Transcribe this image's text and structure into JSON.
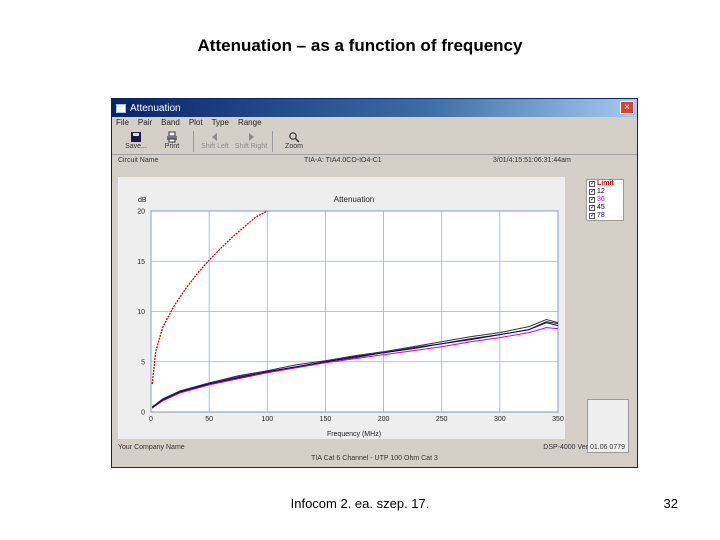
{
  "slide": {
    "title": "Attenuation – as a function of frequency",
    "footer": "Infocom 2. ea. szep. 17.",
    "page_number": "32"
  },
  "window": {
    "title": "Attenuation",
    "close_label": "×",
    "menu": [
      "File",
      "Pair",
      "Band",
      "Plot",
      "Type",
      "Range"
    ],
    "toolbar": [
      {
        "label": "Save...",
        "icon": "save-icon",
        "enabled": true
      },
      {
        "label": "Print",
        "icon": "printer-icon",
        "enabled": true
      },
      {
        "label": "Shift Left",
        "icon": "arrow-left-icon",
        "enabled": false
      },
      {
        "label": "Shift Right",
        "icon": "arrow-right-icon",
        "enabled": false
      },
      {
        "label": "Zoom",
        "icon": "magnifier-icon",
        "enabled": true
      }
    ],
    "info": {
      "left": "Circuit Name",
      "center": "TIA-A: TIA4.0CO-IO4-C1",
      "right": "3/01/4:15:51:06:31:44am"
    },
    "status": {
      "left": "Your Company Name",
      "right": "DSP-4000 Ver 01.06 0779"
    },
    "bottom_line": "TIA Cat 6 Channel - UTP 100 Ohm Cat 3",
    "legend": [
      {
        "label": "Limit",
        "color": "#cc0000",
        "checked": true
      },
      {
        "label": "12",
        "color": "#333333",
        "checked": true
      },
      {
        "label": "36",
        "color": "#cc00cc",
        "checked": true
      },
      {
        "label": "45",
        "color": "#333333",
        "checked": true
      },
      {
        "label": "78",
        "color": "#000080",
        "checked": true
      }
    ]
  },
  "chart_data": {
    "type": "line",
    "title": "Attenuation",
    "ylabel": "dB",
    "xlabel": "Frequency (MHz)",
    "xlim": [
      0,
      350
    ],
    "ylim": [
      0,
      20
    ],
    "xticks": [
      0,
      50,
      100,
      150,
      200,
      250,
      300,
      350
    ],
    "yticks": [
      0,
      5,
      10,
      15,
      20
    ],
    "grid": true,
    "legend_position": "top-right",
    "series": [
      {
        "name": "Limit",
        "color": "#e00000",
        "x": [
          1,
          4,
          10,
          20,
          30,
          40,
          50,
          60,
          70,
          80,
          90,
          100
        ],
        "y": [
          2.8,
          6.0,
          8.4,
          10.6,
          12.3,
          13.8,
          15.1,
          16.3,
          17.4,
          18.4,
          19.4,
          20.4
        ]
      },
      {
        "name": "12",
        "color": "#333333",
        "x": [
          1,
          10,
          25,
          50,
          75,
          100,
          125,
          150,
          175,
          200,
          225,
          250,
          275,
          300,
          325,
          340,
          350
        ],
        "y": [
          0.4,
          1.2,
          2.0,
          2.8,
          3.5,
          4.0,
          4.5,
          5.0,
          5.4,
          5.9,
          6.4,
          6.8,
          7.3,
          7.7,
          8.2,
          9.0,
          8.8
        ]
      },
      {
        "name": "36",
        "color": "#cc00cc",
        "x": [
          1,
          10,
          25,
          50,
          75,
          100,
          125,
          150,
          175,
          200,
          225,
          250,
          275,
          300,
          325,
          340,
          350
        ],
        "y": [
          0.4,
          1.1,
          1.9,
          2.7,
          3.3,
          3.9,
          4.4,
          4.9,
          5.3,
          5.7,
          6.1,
          6.5,
          7.0,
          7.4,
          7.9,
          8.4,
          8.3
        ]
      },
      {
        "name": "45",
        "color": "#333333",
        "x": [
          1,
          10,
          25,
          50,
          75,
          100,
          125,
          150,
          175,
          200,
          225,
          250,
          275,
          300,
          325,
          340,
          350
        ],
        "y": [
          0.5,
          1.3,
          2.1,
          2.9,
          3.6,
          4.1,
          4.7,
          5.1,
          5.6,
          6.0,
          6.5,
          7.0,
          7.5,
          7.9,
          8.5,
          9.2,
          8.9
        ]
      },
      {
        "name": "78",
        "color": "#000080",
        "x": [
          1,
          10,
          25,
          50,
          75,
          100,
          125,
          150,
          175,
          200,
          225,
          250,
          275,
          300,
          325,
          340,
          350
        ],
        "y": [
          0.4,
          1.2,
          2.0,
          2.8,
          3.4,
          4.0,
          4.5,
          5.0,
          5.5,
          5.9,
          6.3,
          6.8,
          7.2,
          7.7,
          8.2,
          8.9,
          8.6
        ]
      }
    ]
  }
}
